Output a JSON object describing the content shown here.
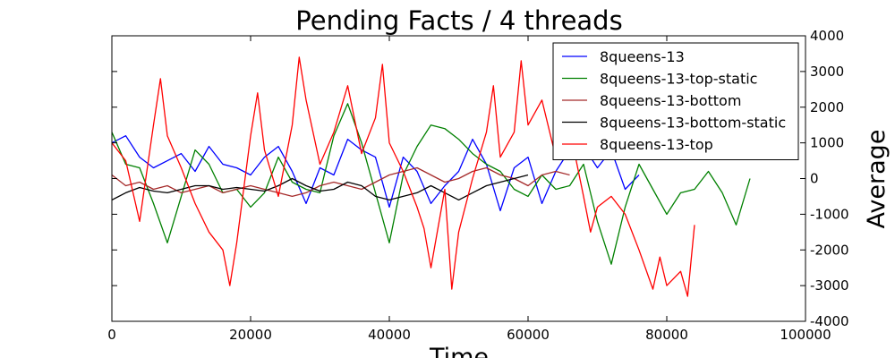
{
  "chart_data": {
    "type": "line",
    "title": "Pending Facts / 4 threads",
    "xlabel": "Time",
    "ylabel": "Average",
    "xlim": [
      0,
      100000
    ],
    "ylim": [
      -4000,
      4000
    ],
    "x_ticks": [
      "0",
      "20000",
      "40000",
      "60000",
      "80000",
      "100000"
    ],
    "y_ticks": [
      "-4000",
      "-3000",
      "-2000",
      "-1000",
      "0",
      "1000",
      "2000",
      "3000",
      "4000"
    ],
    "y_axis_side": "right",
    "grid": false,
    "legend_position": "top-right",
    "series": [
      {
        "name": "8queens-13",
        "color": "#0000ff",
        "x": [
          0,
          2000,
          4000,
          6000,
          8000,
          10000,
          12000,
          14000,
          16000,
          18000,
          20000,
          22000,
          24000,
          26000,
          28000,
          30000,
          32000,
          34000,
          36000,
          38000,
          40000,
          42000,
          44000,
          46000,
          48000,
          50000,
          52000,
          54000,
          56000,
          58000,
          60000,
          62000,
          64000,
          66000,
          68000,
          70000,
          72000,
          74000,
          76000
        ],
        "y": [
          1000,
          1200,
          600,
          300,
          500,
          700,
          200,
          900,
          400,
          300,
          100,
          600,
          900,
          200,
          -700,
          300,
          100,
          1100,
          800,
          600,
          -800,
          600,
          200,
          -700,
          -200,
          200,
          1100,
          400,
          -900,
          300,
          600,
          -700,
          200,
          800,
          900,
          300,
          800,
          -300,
          100
        ]
      },
      {
        "name": "8queens-13-top-static",
        "color": "#008000",
        "x": [
          0,
          2000,
          4000,
          6000,
          8000,
          10000,
          12000,
          14000,
          16000,
          18000,
          20000,
          22000,
          24000,
          26000,
          28000,
          30000,
          32000,
          34000,
          36000,
          38000,
          40000,
          42000,
          44000,
          46000,
          48000,
          50000,
          52000,
          54000,
          56000,
          58000,
          60000,
          62000,
          64000,
          66000,
          68000,
          70000,
          72000,
          74000,
          76000,
          78000,
          80000,
          82000,
          84000,
          86000,
          88000,
          90000,
          92000
        ],
        "y": [
          1300,
          400,
          300,
          -700,
          -1800,
          -500,
          800,
          400,
          -400,
          -300,
          -800,
          -400,
          600,
          -100,
          -300,
          -400,
          1200,
          2100,
          1000,
          -400,
          -1800,
          100,
          900,
          1500,
          1400,
          1100,
          700,
          400,
          200,
          -300,
          -500,
          100,
          -300,
          -200,
          400,
          -1200,
          -2400,
          -800,
          400,
          -300,
          -1000,
          -400,
          -300,
          200,
          -400,
          -1300,
          0
        ]
      },
      {
        "name": "8queens-13-bottom",
        "color": "#a52a2a",
        "x": [
          0,
          2000,
          4000,
          6000,
          8000,
          10000,
          12000,
          14000,
          16000,
          18000,
          20000,
          22000,
          24000,
          26000,
          28000,
          30000,
          32000,
          34000,
          36000,
          38000,
          40000,
          42000,
          44000,
          46000,
          48000,
          50000,
          52000,
          54000,
          56000,
          58000,
          60000,
          62000,
          64000,
          66000
        ],
        "y": [
          100,
          -200,
          -100,
          -300,
          -200,
          -400,
          -300,
          -200,
          -400,
          -300,
          -200,
          -300,
          -400,
          -500,
          -400,
          -200,
          -100,
          -200,
          -300,
          -100,
          100,
          200,
          300,
          100,
          -100,
          0,
          200,
          300,
          100,
          0,
          -200,
          100,
          200,
          100
        ]
      },
      {
        "name": "8queens-13-bottom-static",
        "color": "#000000",
        "x": [
          0,
          2000,
          4000,
          6000,
          8000,
          10000,
          12000,
          14000,
          16000,
          18000,
          20000,
          22000,
          24000,
          26000,
          28000,
          30000,
          32000,
          34000,
          36000,
          38000,
          40000,
          42000,
          44000,
          46000,
          48000,
          50000,
          52000,
          54000,
          56000,
          58000,
          60000
        ],
        "y": [
          -600,
          -400,
          -250,
          -350,
          -400,
          -300,
          -200,
          -200,
          -300,
          -250,
          -300,
          -350,
          -200,
          0,
          -200,
          -350,
          -300,
          -100,
          -200,
          -500,
          -600,
          -500,
          -400,
          -200,
          -400,
          -600,
          -400,
          -200,
          -100,
          0,
          100
        ]
      },
      {
        "name": "8queens-13-top",
        "color": "#ff0000",
        "x": [
          0,
          2000,
          4000,
          6000,
          7000,
          8000,
          10000,
          12000,
          14000,
          16000,
          17000,
          18000,
          20000,
          21000,
          22000,
          24000,
          26000,
          27000,
          28000,
          30000,
          32000,
          34000,
          36000,
          38000,
          39000,
          40000,
          42000,
          44000,
          45000,
          46000,
          48000,
          49000,
          50000,
          52000,
          54000,
          55000,
          56000,
          58000,
          59000,
          60000,
          62000,
          64000,
          66000,
          68000,
          69000,
          70000,
          72000,
          74000,
          76000,
          78000,
          79000,
          80000,
          82000,
          83000,
          84000
        ],
        "y": [
          1000,
          500,
          -1200,
          1500,
          2800,
          1200,
          300,
          -700,
          -1500,
          -2000,
          -3000,
          -1800,
          1200,
          2400,
          800,
          -500,
          1500,
          3400,
          2200,
          400,
          1300,
          2600,
          700,
          1700,
          3200,
          1000,
          200,
          -800,
          -1400,
          -2500,
          -300,
          -3100,
          -1500,
          0,
          1300,
          2600,
          600,
          1300,
          3300,
          1500,
          2200,
          600,
          1400,
          -500,
          -1500,
          -800,
          -500,
          -1000,
          -2000,
          -3100,
          -2200,
          -3000,
          -2600,
          -3300,
          -1300
        ]
      }
    ]
  }
}
